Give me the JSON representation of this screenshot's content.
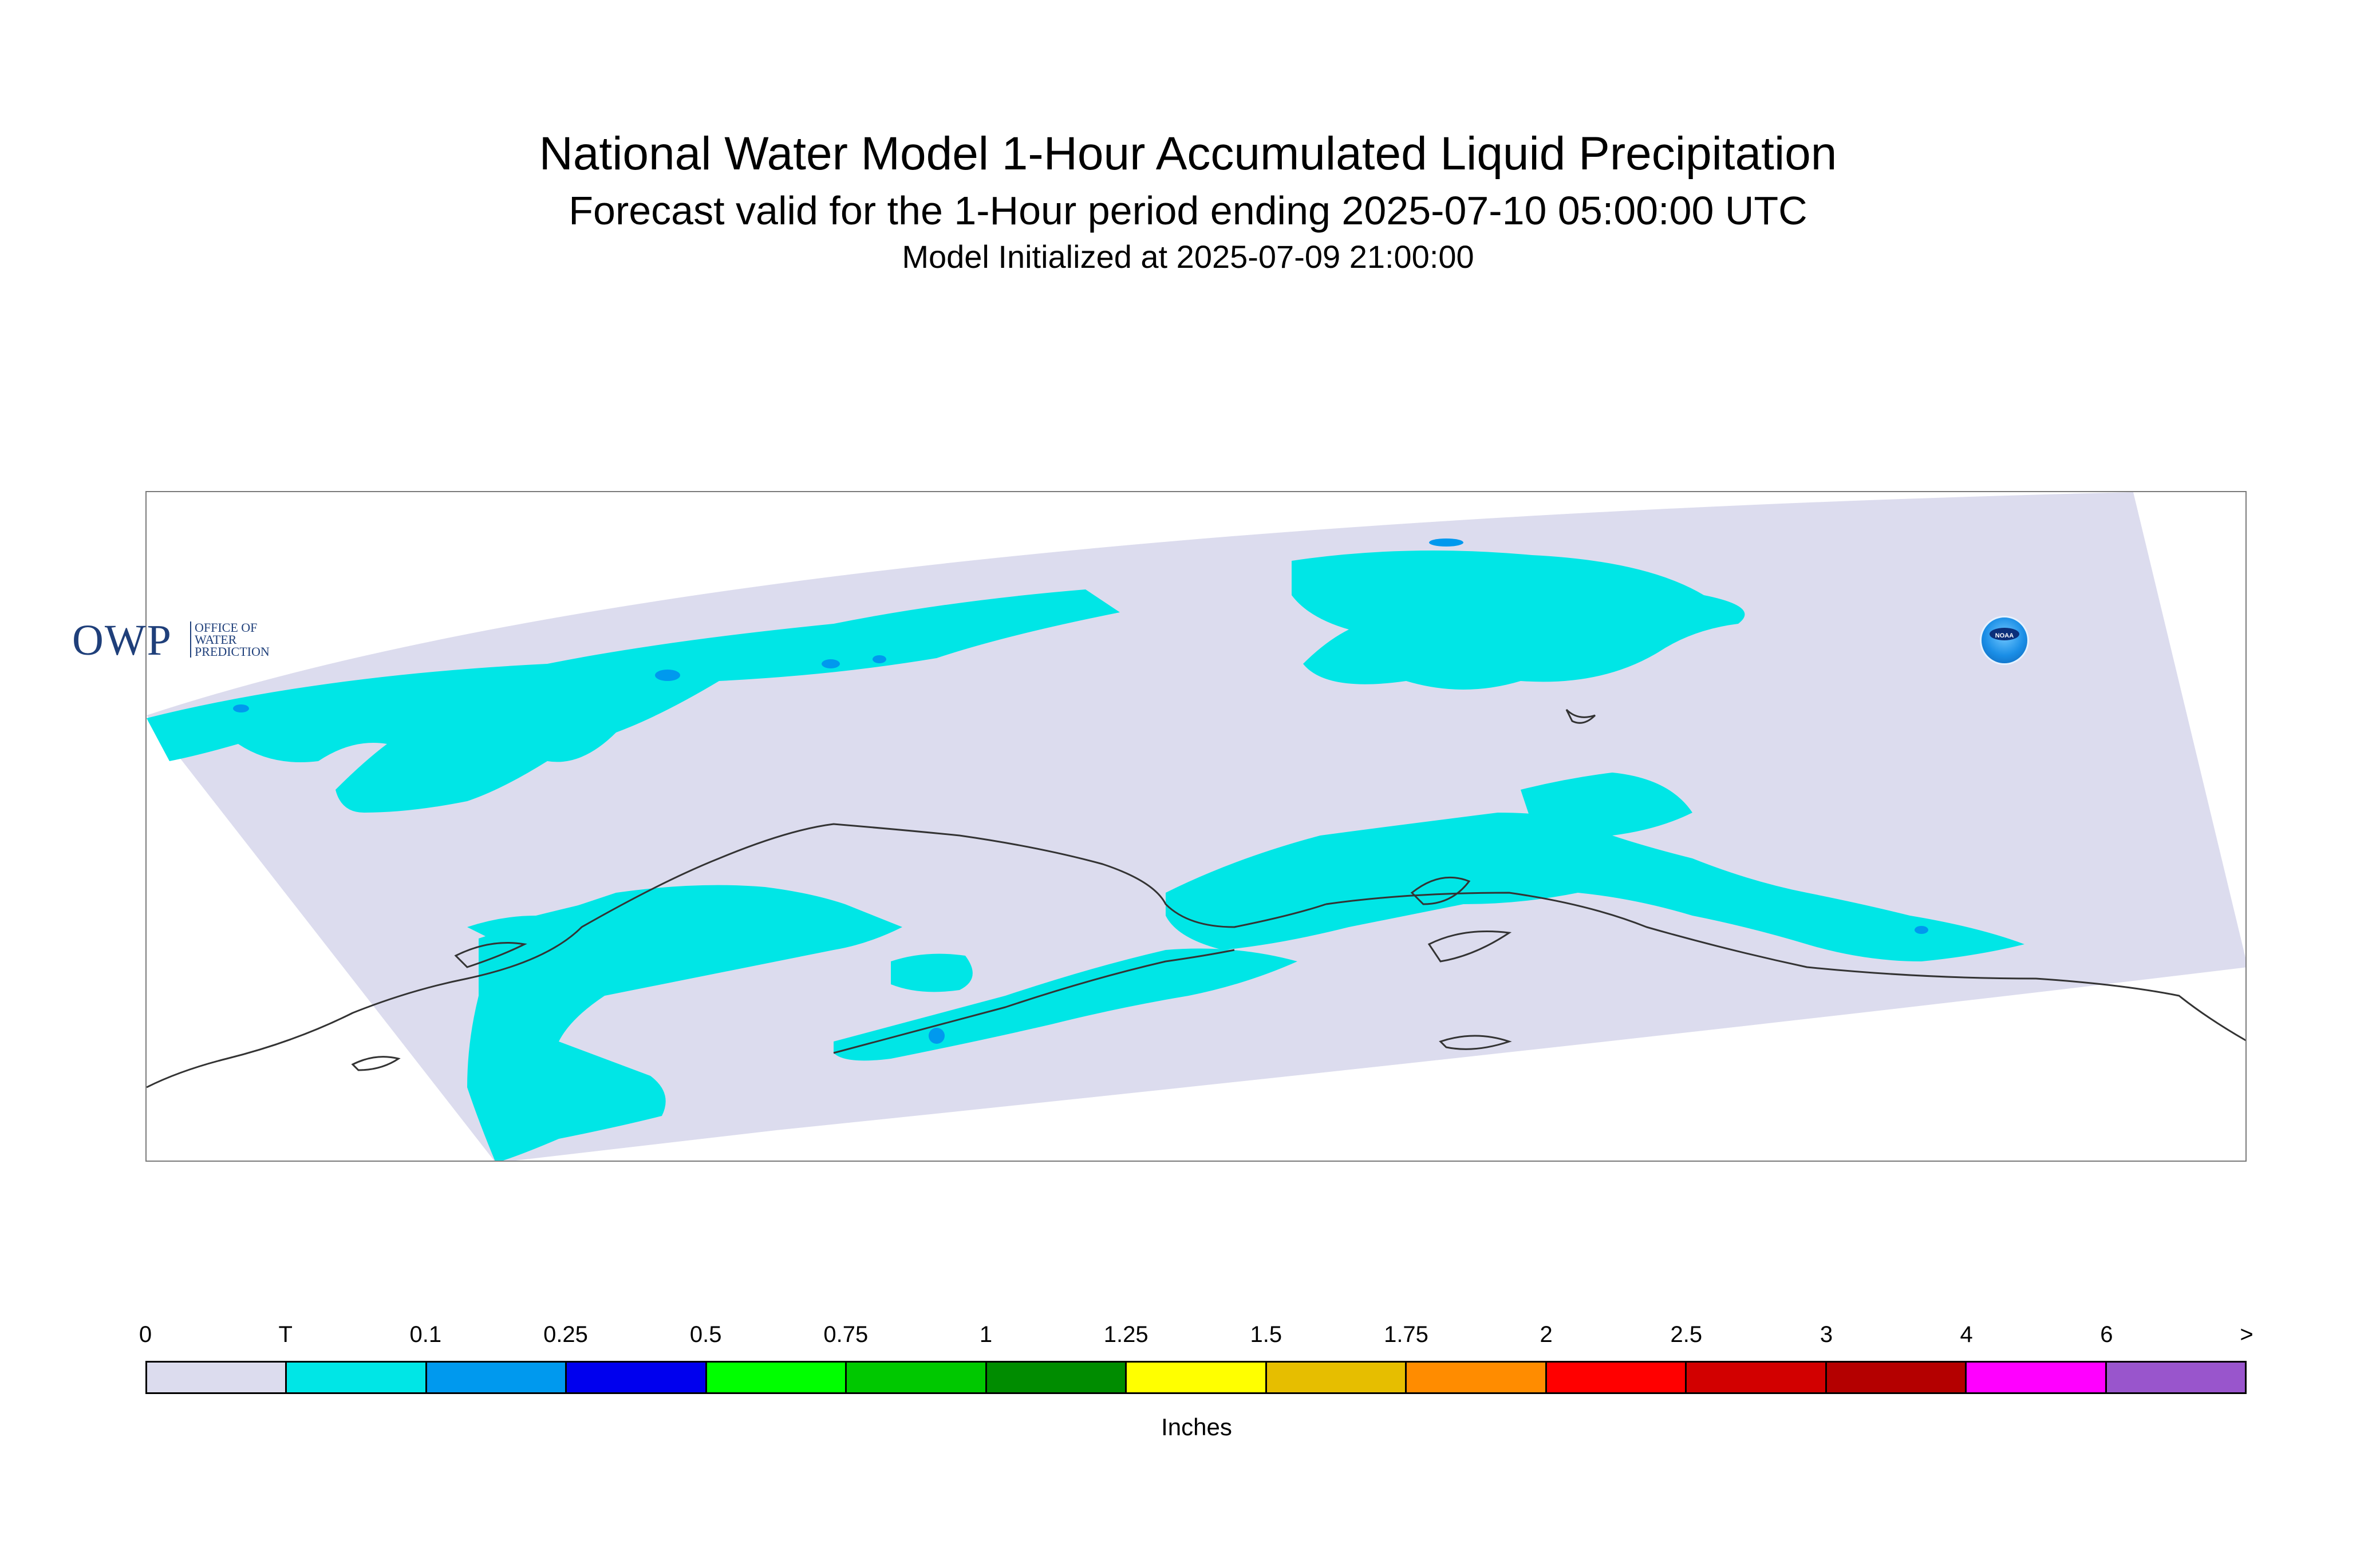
{
  "title": "National Water Model 1-Hour Accumulated Liquid Precipitation",
  "subtitle": "Forecast valid for the 1-Hour period ending 2025-07-10 05:00:00 UTC",
  "init_line": "Model Initialized at 2025-07-09 21:00:00",
  "logos": {
    "owp_letters": "OWP",
    "owp_text": [
      "OFFICE OF",
      "WATER",
      "PREDICTION"
    ],
    "noaa_text": "NOAA"
  },
  "legend": {
    "labels": [
      "0",
      "T",
      "0.1",
      "0.25",
      "0.5",
      "0.75",
      "1",
      "1.25",
      "1.5",
      "1.75",
      "2",
      "2.5",
      "3",
      "4",
      "6",
      ">"
    ],
    "colors": [
      "#dcdcee",
      "#00e6e6",
      "#0099ee",
      "#0000ee",
      "#00ff00",
      "#00c800",
      "#008c00",
      "#ffff00",
      "#e6be00",
      "#ff8c00",
      "#ff0000",
      "#d20000",
      "#b40000",
      "#ff00ff",
      "#9955cc"
    ],
    "units": "Inches"
  },
  "map_colors": {
    "domain_fill": "#dcdcee",
    "trace": "#00e6e6",
    "light": "#0099ee",
    "coast": "#333333"
  }
}
